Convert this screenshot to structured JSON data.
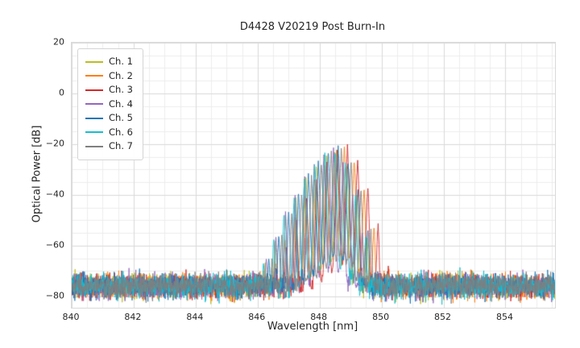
{
  "chart_data": {
    "type": "line",
    "title": "D4428 V20219 Post Burn-In",
    "xlabel": "Wavelength [nm]",
    "ylabel": "Optical Power [dB]",
    "xlim": [
      840,
      855.6
    ],
    "ylim": [
      -84.5,
      20
    ],
    "xticks": [
      840,
      842,
      844,
      846,
      848,
      850,
      852,
      854
    ],
    "xtick_labels": [
      "840",
      "842",
      "844",
      "846",
      "848",
      "850",
      "852",
      "854"
    ],
    "yticks": [
      20,
      0,
      -20,
      -40,
      -60,
      -80
    ],
    "ytick_labels": [
      "20",
      "0",
      "−20",
      "−40",
      "−60",
      "−80"
    ],
    "x_minor_step": 0.5,
    "y_minor_step": 5,
    "grid": {
      "enabled": true,
      "major_color": "#d9d9d9",
      "minor_color": "#ececec"
    },
    "legend": {
      "position": "upper-left",
      "entries": [
        "Ch. 1",
        "Ch. 2",
        "Ch. 3",
        "Ch. 4",
        "Ch. 5",
        "Ch. 6",
        "Ch. 7"
      ]
    },
    "noise_floor_db": -76,
    "noise_sigma_db": 2.4,
    "envelope": {
      "k": 11,
      "p": 1.6
    },
    "sample_step_nm": 0.01,
    "series": [
      {
        "name": "Ch. 1",
        "color": "#bcbd22",
        "center_nm": 848.55,
        "peak_db": -22.0,
        "mode_spacing_nm": 0.33,
        "left_width_nm": 0.95,
        "right_width_nm": 0.48,
        "notch_depth_db": 44
      },
      {
        "name": "Ch. 2",
        "color": "#ff7f0e",
        "center_nm": 848.8,
        "peak_db": -21.5,
        "mode_spacing_nm": 0.32,
        "left_width_nm": 0.92,
        "right_width_nm": 0.5,
        "notch_depth_db": 42
      },
      {
        "name": "Ch. 3",
        "color": "#d62728",
        "center_nm": 848.9,
        "peak_db": -21.0,
        "mode_spacing_nm": 0.33,
        "left_width_nm": 0.9,
        "right_width_nm": 0.52,
        "notch_depth_db": 46
      },
      {
        "name": "Ch. 4",
        "color": "#9467bd",
        "center_nm": 848.45,
        "peak_db": -22.5,
        "mode_spacing_nm": 0.31,
        "left_width_nm": 0.93,
        "right_width_nm": 0.47,
        "notch_depth_db": 48
      },
      {
        "name": "Ch. 5",
        "color": "#1f77b4",
        "center_nm": 848.6,
        "peak_db": -21.3,
        "mode_spacing_nm": 0.32,
        "left_width_nm": 0.94,
        "right_width_nm": 0.49,
        "notch_depth_db": 43
      },
      {
        "name": "Ch. 6",
        "color": "#17becf",
        "center_nm": 848.5,
        "peak_db": -22.2,
        "mode_spacing_nm": 0.33,
        "left_width_nm": 0.96,
        "right_width_nm": 0.48,
        "notch_depth_db": 45
      },
      {
        "name": "Ch. 7",
        "color": "#7f7f7f",
        "center_nm": 848.7,
        "peak_db": -21.8,
        "mode_spacing_nm": 0.32,
        "left_width_nm": 0.94,
        "right_width_nm": 0.49,
        "notch_depth_db": 44
      }
    ]
  }
}
